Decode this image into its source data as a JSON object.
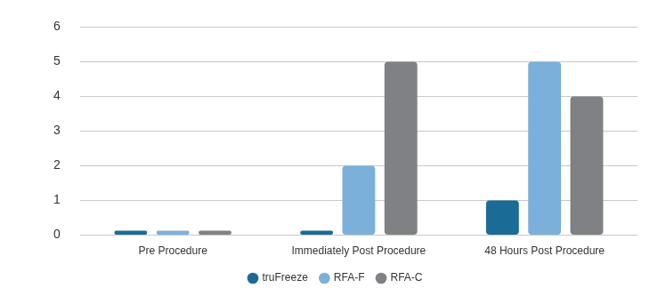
{
  "chart_data": {
    "type": "bar",
    "categories": [
      "Pre Procedure",
      "Immediately Post Procedure",
      "48 Hours Post Procedure"
    ],
    "series": [
      {
        "name": "truFreeze",
        "color": "#1b6b97",
        "values": [
          0,
          0,
          1
        ]
      },
      {
        "name": "RFA-F",
        "color": "#7bb0da",
        "values": [
          0,
          2,
          5
        ]
      },
      {
        "name": "RFA-C",
        "color": "#808184",
        "values": [
          0,
          5,
          4
        ]
      }
    ],
    "ylim": [
      0,
      6
    ],
    "yticks": [
      0,
      1,
      2,
      3,
      4,
      5,
      6
    ],
    "grid": true,
    "legend": "bottom"
  }
}
